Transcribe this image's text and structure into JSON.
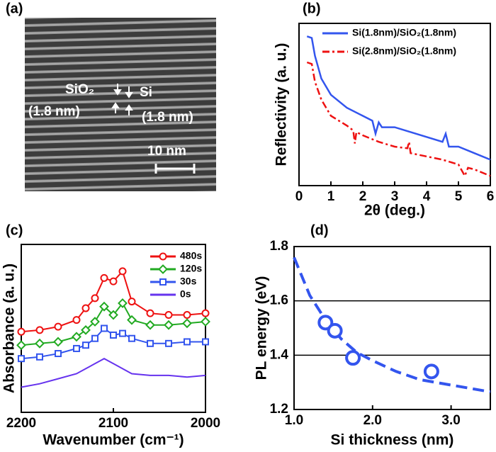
{
  "chart_data": [
    {
      "type": "image",
      "label": "(a)",
      "annotations": [
        "SiO₂",
        "(1.8 nm)",
        "Si",
        "(1.8 nm)"
      ],
      "scale_bar": "10 nm"
    },
    {
      "type": "line",
      "label": "(b)",
      "xlabel": "2θ (deg.)",
      "ylabel": "Reflectivity (a. u.)",
      "xlim": [
        0,
        6
      ],
      "xticks": [
        0,
        1,
        2,
        3,
        4,
        5,
        6
      ],
      "ylim": [
        0,
        10
      ],
      "series": [
        {
          "name": "Si(1.8nm)/SiO₂(1.8nm)",
          "color": "#3355ee",
          "dash": "solid",
          "x": [
            0.25,
            0.4,
            0.5,
            0.7,
            1.0,
            1.5,
            2.0,
            2.3,
            2.4,
            2.5,
            2.6,
            3.0,
            3.5,
            4.0,
            4.5,
            4.6,
            4.7,
            5.0,
            5.5,
            6.0
          ],
          "values": [
            9.2,
            9.1,
            8.0,
            6.6,
            5.6,
            4.8,
            4.3,
            4.0,
            3.2,
            3.9,
            3.6,
            3.6,
            3.3,
            3.0,
            2.7,
            3.2,
            2.4,
            2.4,
            2.0,
            1.6
          ]
        },
        {
          "name": "Si(2.8nm)/SiO₂(1.8nm)",
          "color": "#ee1111",
          "dash": "dashdot",
          "x": [
            0.25,
            0.4,
            0.5,
            0.7,
            1.0,
            1.5,
            1.7,
            1.75,
            1.8,
            2.0,
            2.5,
            3.0,
            3.4,
            3.45,
            3.5,
            4.0,
            4.5,
            5.0,
            5.2,
            5.3,
            5.5,
            6.0
          ],
          "values": [
            7.6,
            7.5,
            6.4,
            5.3,
            4.3,
            3.7,
            3.4,
            2.6,
            3.3,
            3.1,
            2.7,
            2.4,
            2.3,
            2.7,
            2.0,
            1.8,
            1.6,
            1.3,
            0.6,
            1.1,
            1.0,
            0.6
          ]
        }
      ]
    },
    {
      "type": "line",
      "label": "(c)",
      "xlabel": "Wavenumber (cm⁻¹)",
      "ylabel": "Absorbance (a. u.)",
      "xlim": [
        2200,
        2000
      ],
      "xticks": [
        2200,
        2100,
        2000
      ],
      "ylim": [
        0,
        10
      ],
      "x": [
        2200,
        2180,
        2160,
        2140,
        2130,
        2120,
        2110,
        2100,
        2090,
        2080,
        2060,
        2040,
        2020,
        2000
      ],
      "series": [
        {
          "name": "480s",
          "color": "#ee1111",
          "marker": "circle",
          "values": [
            4.8,
            4.9,
            5.1,
            5.5,
            6.2,
            6.8,
            8.0,
            7.8,
            8.4,
            6.6,
            5.9,
            5.8,
            5.8,
            5.9
          ]
        },
        {
          "name": "120s",
          "color": "#22aa22",
          "marker": "diamond",
          "values": [
            4.0,
            4.1,
            4.2,
            4.5,
            4.9,
            5.4,
            6.3,
            5.8,
            6.5,
            5.5,
            5.2,
            5.2,
            5.3,
            5.4
          ]
        },
        {
          "name": "30s",
          "color": "#3355ee",
          "marker": "square",
          "values": [
            3.2,
            3.3,
            3.5,
            3.8,
            4.0,
            4.4,
            5.0,
            4.6,
            4.7,
            4.4,
            4.1,
            4.1,
            4.2,
            4.2
          ]
        },
        {
          "name": "0s",
          "color": "#6633ee",
          "marker": "none",
          "values": [
            1.5,
            1.7,
            2.0,
            2.3,
            2.6,
            2.9,
            3.2,
            2.9,
            2.6,
            2.3,
            2.2,
            2.2,
            2.1,
            2.2
          ]
        }
      ]
    },
    {
      "type": "scatter",
      "label": "(d)",
      "xlabel": "Si thickness (nm)",
      "ylabel": "PL energy (eV)",
      "xlim": [
        1.0,
        3.5
      ],
      "xticks": [
        {
          "value": 1.0,
          "label": "1.0"
        },
        {
          "value": 2.0,
          "label": "2.0"
        },
        {
          "value": 3.0,
          "label": "3.0"
        }
      ],
      "ylim": [
        1.2,
        1.8
      ],
      "yticks": [
        1.2,
        1.4,
        1.6,
        1.8
      ],
      "grid": true,
      "color": "#3355ee",
      "x": [
        1.4,
        1.52,
        1.75,
        2.75
      ],
      "values": [
        1.52,
        1.49,
        1.39,
        1.34
      ],
      "fit_x": [
        1.0,
        1.2,
        1.4,
        1.6,
        1.8,
        2.0,
        2.3,
        2.6,
        3.0,
        3.5
      ],
      "fit_values": [
        1.76,
        1.62,
        1.53,
        1.46,
        1.41,
        1.38,
        1.34,
        1.31,
        1.29,
        1.265
      ]
    }
  ]
}
